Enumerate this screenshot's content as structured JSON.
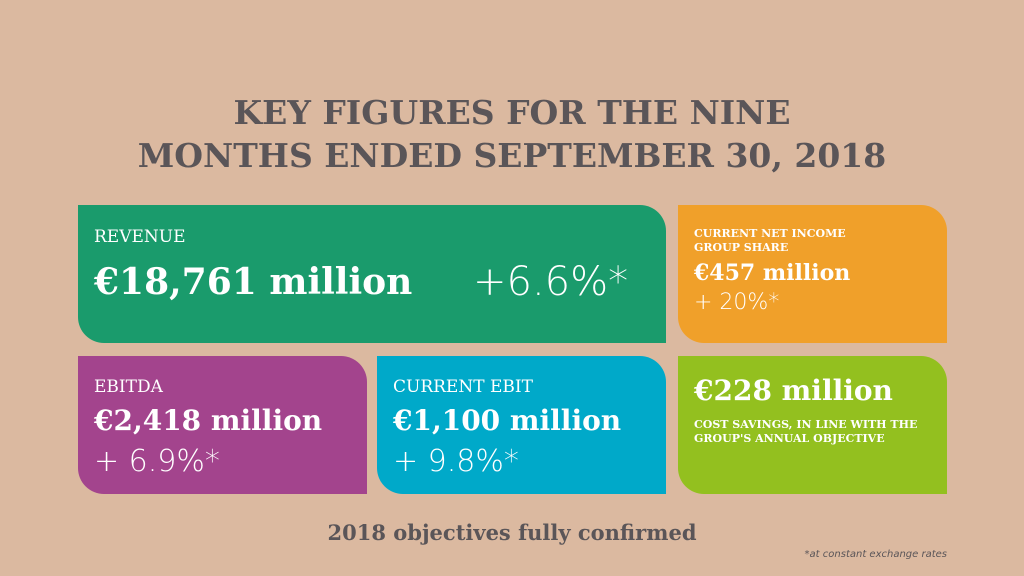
{
  "header": {
    "title_lines": [
      "KEY FIGURES FOR THE NINE",
      "MONTHS ENDED SEPTEMBER 30, 2018"
    ]
  },
  "cards": {
    "revenue": {
      "label": "REVENUE",
      "value": "€18,761 million",
      "change": "+6.6%*"
    },
    "net_income": {
      "label": "CURRENT NET INCOME GROUP SHARE",
      "value": "€457 million",
      "change": "+ 20%*"
    },
    "ebitda": {
      "label": "EBITDA",
      "value": "€2,418 million",
      "change": "+ 6.9%*"
    },
    "ebit": {
      "label": "CURRENT EBIT",
      "value": "€1,100 million",
      "change": "+ 9.8%*"
    },
    "cost_savings": {
      "value": "€228 million",
      "description": "COST SAVINGS, IN LINE WITH THE GROUP'S ANNUAL OBJECTIVE"
    }
  },
  "footer": {
    "text": "2018 objectives fully confirmed",
    "footnote": "*at constant exchange rates"
  }
}
